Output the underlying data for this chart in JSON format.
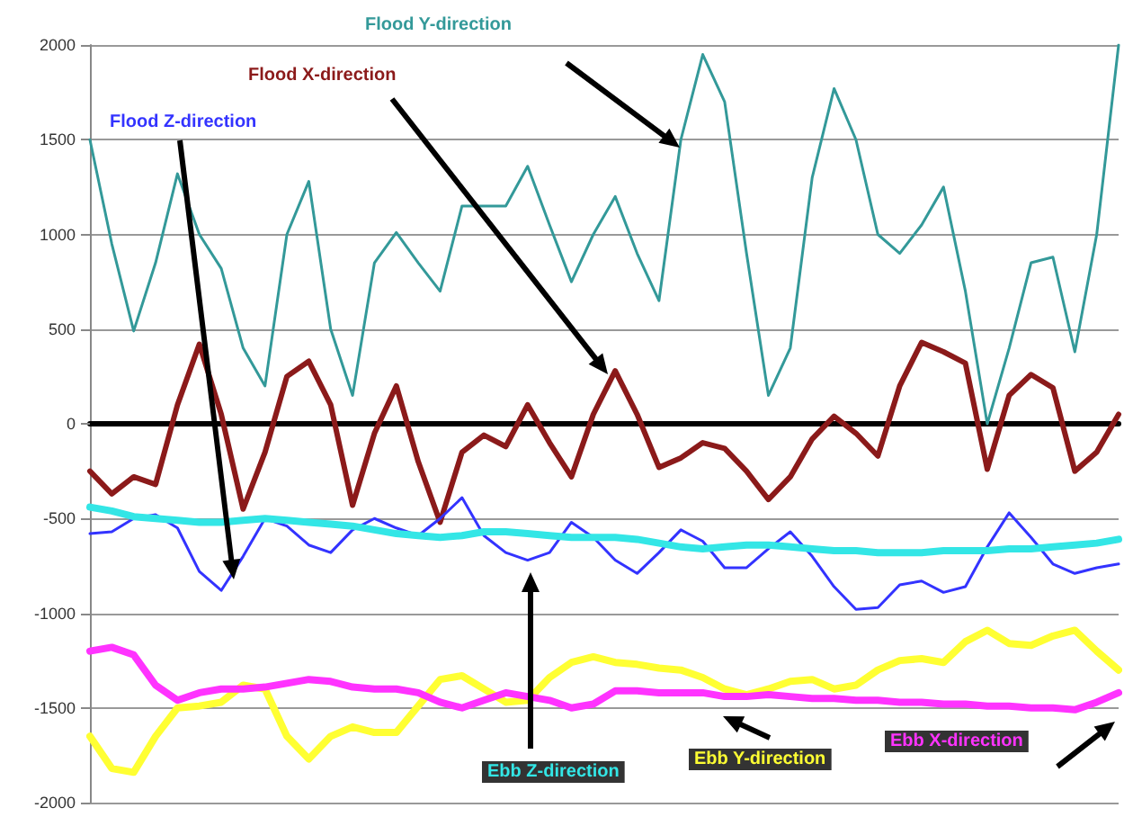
{
  "chart_data": {
    "type": "line",
    "categories": [
      null,
      null,
      null,
      null,
      null,
      null,
      null,
      null,
      null,
      null,
      null,
      null,
      null,
      null,
      null,
      null,
      null,
      null,
      null,
      null,
      null,
      null,
      null,
      null,
      null,
      null,
      null,
      null,
      null,
      null,
      null,
      null,
      null,
      null,
      null,
      null,
      null,
      null,
      null,
      null,
      null,
      null,
      null,
      null,
      null,
      null,
      null,
      null
    ],
    "series": [
      {
        "name": "Flood Y-direction",
        "color": "#339999",
        "values": [
          1500,
          950,
          490,
          850,
          1320,
          1000,
          820,
          400,
          200,
          1000,
          1280,
          500,
          150,
          850,
          1010,
          850,
          700,
          1150,
          1150,
          1150,
          1360,
          1050,
          750,
          1000,
          1200,
          900,
          650,
          1500,
          1950,
          1700,
          900,
          150,
          400,
          1300,
          1770,
          1500,
          1000,
          900,
          1050,
          1250,
          700,
          0,
          400,
          850,
          880,
          380,
          1000,
          2000
        ]
      },
      {
        "name": "Flood X-direction",
        "color": "#8b1a1a",
        "values": [
          -250,
          -370,
          -280,
          -320,
          100,
          420,
          50,
          -450,
          -150,
          250,
          330,
          100,
          -430,
          -50,
          200,
          -200,
          -520,
          -150,
          -60,
          -120,
          100,
          -100,
          -280,
          50,
          280,
          50,
          -230,
          -180,
          -100,
          -130,
          -250,
          -400,
          -280,
          -80,
          40,
          -50,
          -170,
          200,
          430,
          380,
          320,
          -240,
          150,
          260,
          190,
          -250,
          -150,
          50
        ]
      },
      {
        "name": "Flood Z-direction",
        "color": "#3333ff",
        "values": [
          -580,
          -570,
          -500,
          -480,
          -550,
          -780,
          -880,
          -700,
          -500,
          -540,
          -640,
          -680,
          -560,
          -500,
          -550,
          -590,
          -500,
          -390,
          -590,
          -680,
          -720,
          -680,
          -520,
          -600,
          -720,
          -790,
          -680,
          -560,
          -620,
          -760,
          -760,
          -660,
          -570,
          -700,
          -860,
          -980,
          -970,
          -850,
          -830,
          -890,
          -860,
          -650,
          -470,
          -600,
          -740,
          -790,
          -760,
          -740
        ]
      },
      {
        "name": "Ebb Z-direction",
        "color": "#33e6e6",
        "values": [
          -440,
          -460,
          -490,
          -500,
          -510,
          -520,
          -520,
          -510,
          -500,
          -510,
          -520,
          -530,
          -540,
          -560,
          -580,
          -590,
          -600,
          -590,
          -570,
          -570,
          -580,
          -590,
          -600,
          -600,
          -600,
          -610,
          -630,
          -650,
          -660,
          -650,
          -640,
          -640,
          -650,
          -660,
          -670,
          -670,
          -680,
          -680,
          -680,
          -670,
          -670,
          -670,
          -660,
          -660,
          -650,
          -640,
          -630,
          -610
        ]
      },
      {
        "name": "Ebb Y-direction",
        "color": "#ffff33",
        "values": [
          -1650,
          -1820,
          -1840,
          -1650,
          -1500,
          -1490,
          -1470,
          -1380,
          -1400,
          -1650,
          -1770,
          -1650,
          -1600,
          -1630,
          -1630,
          -1490,
          -1350,
          -1330,
          -1400,
          -1470,
          -1460,
          -1340,
          -1260,
          -1230,
          -1260,
          -1270,
          -1290,
          -1300,
          -1340,
          -1400,
          -1430,
          -1400,
          -1360,
          -1350,
          -1400,
          -1380,
          -1300,
          -1250,
          -1240,
          -1260,
          -1150,
          -1090,
          -1160,
          -1170,
          -1120,
          -1090,
          -1200,
          -1300
        ]
      },
      {
        "name": "Ebb X-direction",
        "color": "#ff33ff",
        "values": [
          -1200,
          -1180,
          -1220,
          -1380,
          -1460,
          -1420,
          -1400,
          -1400,
          -1390,
          -1370,
          -1350,
          -1360,
          -1390,
          -1400,
          -1400,
          -1420,
          -1470,
          -1500,
          -1460,
          -1420,
          -1440,
          -1460,
          -1500,
          -1480,
          -1410,
          -1410,
          -1420,
          -1420,
          -1420,
          -1440,
          -1440,
          -1430,
          -1440,
          -1450,
          -1450,
          -1460,
          -1460,
          -1470,
          -1470,
          -1480,
          -1480,
          -1490,
          -1490,
          -1500,
          -1500,
          -1510,
          -1470,
          -1420
        ]
      }
    ],
    "ylim": [
      -2000,
      2000
    ],
    "yticks": [
      -2000,
      -1500,
      -1000,
      -500,
      0,
      500,
      1000,
      1500,
      2000
    ],
    "grid": "y"
  }
}
